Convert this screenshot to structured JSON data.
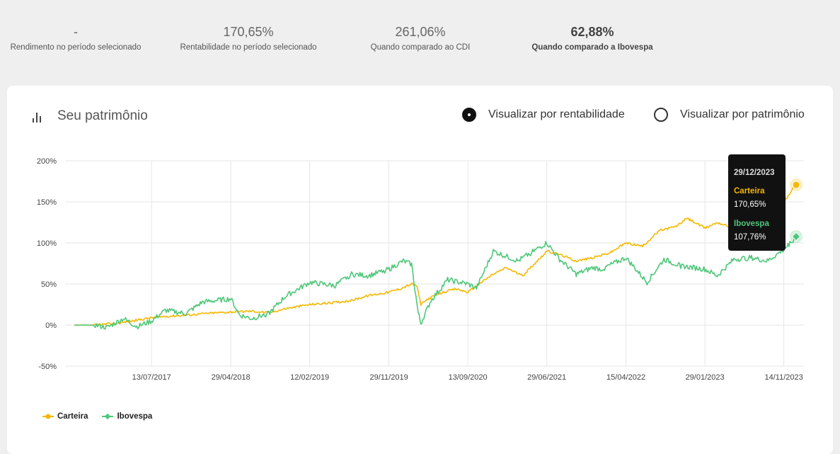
{
  "stats": [
    {
      "value": "-",
      "label": "Rendimento no período selecionado"
    },
    {
      "value": "170,65%",
      "label": "Rentabilidade no período selecionado"
    },
    {
      "value": "261,06%",
      "label": "Quando comparado ao CDI"
    },
    {
      "value": "62,88%",
      "label": "Quando comparado a Ibovespa"
    }
  ],
  "card": {
    "title": "Seu patrimônio",
    "radio_rentabilidade": "Visualizar por rentabilidade",
    "radio_patrimonio": "Visualizar por patrimônio",
    "selected": "rentabilidade"
  },
  "tooltip": {
    "date": "29/12/2023",
    "series1_name": "Carteira",
    "series1_value": "170,65%",
    "series2_name": "Ibovespa",
    "series2_value": "107,76%"
  },
  "legend": [
    "Carteira",
    "Ibovespa"
  ],
  "colors": {
    "carteira": "#f5b800",
    "ibovespa": "#4fc77a"
  },
  "chart_data": {
    "type": "line",
    "y_ticks": [
      "200%",
      "150%",
      "100%",
      "50%",
      "0%",
      "-50%"
    ],
    "x_ticks": [
      "13/07/2017",
      "29/04/2018",
      "12/02/2019",
      "29/11/2019",
      "13/09/2020",
      "29/06/2021",
      "15/04/2022",
      "29/01/2023",
      "14/11/2023"
    ],
    "ylim": [
      -50,
      200
    ],
    "grid": true,
    "legend_position": "bottom-left",
    "series": [
      {
        "name": "Carteira",
        "values": [
          [
            "2016-10-03",
            0
          ],
          [
            "2016-12-15",
            0
          ],
          [
            "2017-03-01",
            2
          ],
          [
            "2017-05-01",
            5
          ],
          [
            "2017-07-13",
            9
          ],
          [
            "2017-09-15",
            11
          ],
          [
            "2017-11-15",
            12
          ],
          [
            "2018-01-20",
            14
          ],
          [
            "2018-04-29",
            16
          ],
          [
            "2018-07-15",
            17
          ],
          [
            "2018-09-15",
            15
          ],
          [
            "2018-11-15",
            20
          ],
          [
            "2019-02-12",
            25
          ],
          [
            "2019-05-01",
            27
          ],
          [
            "2019-07-15",
            30
          ],
          [
            "2019-09-15",
            36
          ],
          [
            "2019-11-29",
            40
          ],
          [
            "2020-01-15",
            45
          ],
          [
            "2020-02-20",
            50
          ],
          [
            "2020-03-10",
            48
          ],
          [
            "2020-03-25",
            25
          ],
          [
            "2020-04-20",
            32
          ],
          [
            "2020-06-15",
            40
          ],
          [
            "2020-08-01",
            44
          ],
          [
            "2020-09-13",
            40
          ],
          [
            "2020-11-01",
            52
          ],
          [
            "2020-12-15",
            62
          ],
          [
            "2021-02-01",
            70
          ],
          [
            "2021-04-01",
            60
          ],
          [
            "2021-06-29",
            90
          ],
          [
            "2021-08-15",
            86
          ],
          [
            "2021-10-15",
            78
          ],
          [
            "2021-12-15",
            82
          ],
          [
            "2022-02-15",
            88
          ],
          [
            "2022-04-15",
            100
          ],
          [
            "2022-06-15",
            96
          ],
          [
            "2022-08-15",
            115
          ],
          [
            "2022-10-15",
            120
          ],
          [
            "2022-11-25",
            130
          ],
          [
            "2023-01-29",
            118
          ],
          [
            "2023-03-15",
            125
          ],
          [
            "2023-05-15",
            118
          ],
          [
            "2023-07-15",
            130
          ],
          [
            "2023-09-15",
            128
          ],
          [
            "2023-11-14",
            150
          ],
          [
            "2023-12-29",
            170.65
          ]
        ]
      },
      {
        "name": "Ibovespa",
        "values": [
          [
            "2016-10-03",
            0
          ],
          [
            "2016-12-15",
            0
          ],
          [
            "2017-02-01",
            -3
          ],
          [
            "2017-04-01",
            8
          ],
          [
            "2017-05-20",
            -2
          ],
          [
            "2017-07-13",
            5
          ],
          [
            "2017-09-01",
            18
          ],
          [
            "2017-11-15",
            14
          ],
          [
            "2018-01-15",
            28
          ],
          [
            "2018-04-29",
            32
          ],
          [
            "2018-06-01",
            12
          ],
          [
            "2018-07-15",
            8
          ],
          [
            "2018-09-15",
            14
          ],
          [
            "2018-11-15",
            35
          ],
          [
            "2019-02-12",
            52
          ],
          [
            "2019-05-15",
            48
          ],
          [
            "2019-07-15",
            62
          ],
          [
            "2019-09-15",
            60
          ],
          [
            "2019-11-29",
            68
          ],
          [
            "2020-01-20",
            78
          ],
          [
            "2020-02-20",
            74
          ],
          [
            "2020-03-15",
            15
          ],
          [
            "2020-03-25",
            2
          ],
          [
            "2020-05-01",
            30
          ],
          [
            "2020-07-01",
            55
          ],
          [
            "2020-09-13",
            50
          ],
          [
            "2020-10-15",
            45
          ],
          [
            "2020-12-15",
            90
          ],
          [
            "2021-03-15",
            78
          ],
          [
            "2021-06-29",
            100
          ],
          [
            "2021-08-15",
            80
          ],
          [
            "2021-10-15",
            62
          ],
          [
            "2021-12-15",
            70
          ],
          [
            "2022-01-15",
            68
          ],
          [
            "2022-04-15",
            82
          ],
          [
            "2022-07-01",
            52
          ],
          [
            "2022-09-01",
            80
          ],
          [
            "2022-11-01",
            72
          ],
          [
            "2023-01-29",
            68
          ],
          [
            "2023-03-15",
            60
          ],
          [
            "2023-05-15",
            80
          ],
          [
            "2023-07-15",
            82
          ],
          [
            "2023-09-15",
            78
          ],
          [
            "2023-11-14",
            92
          ],
          [
            "2023-12-29",
            107.76
          ]
        ]
      }
    ]
  }
}
